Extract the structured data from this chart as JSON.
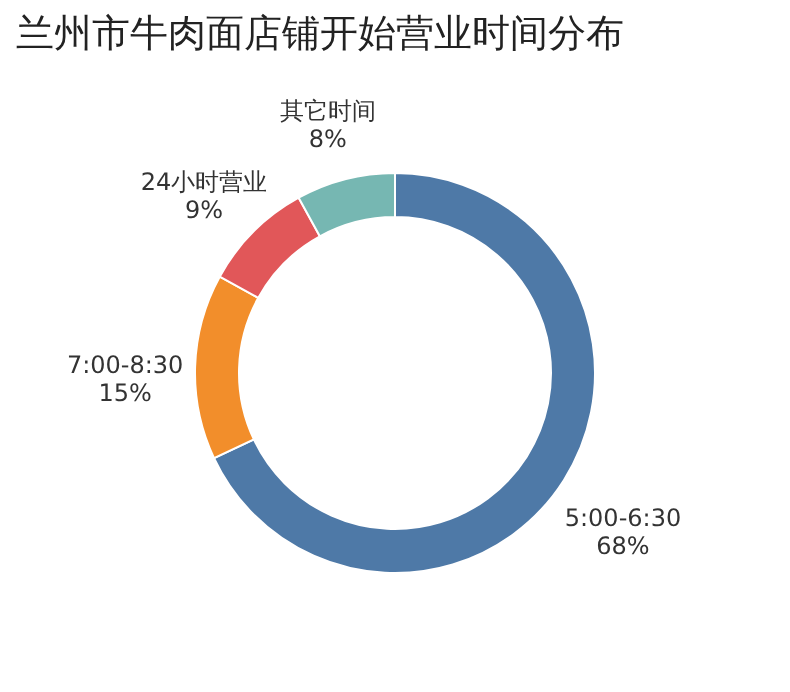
{
  "chart_data": {
    "type": "donut",
    "title": "兰州市牛肉面店铺开始营业时间分布",
    "categories": [
      "5:00-6:30",
      "7:00-8:30",
      "24小时营业",
      "其它时间"
    ],
    "values": [
      68,
      15,
      9,
      8
    ],
    "value_labels": [
      "68%",
      "15%",
      "9%",
      "8%"
    ],
    "colors": [
      "#4e79a7",
      "#f28e2b",
      "#e15759",
      "#76b7b2"
    ],
    "legend": false
  }
}
